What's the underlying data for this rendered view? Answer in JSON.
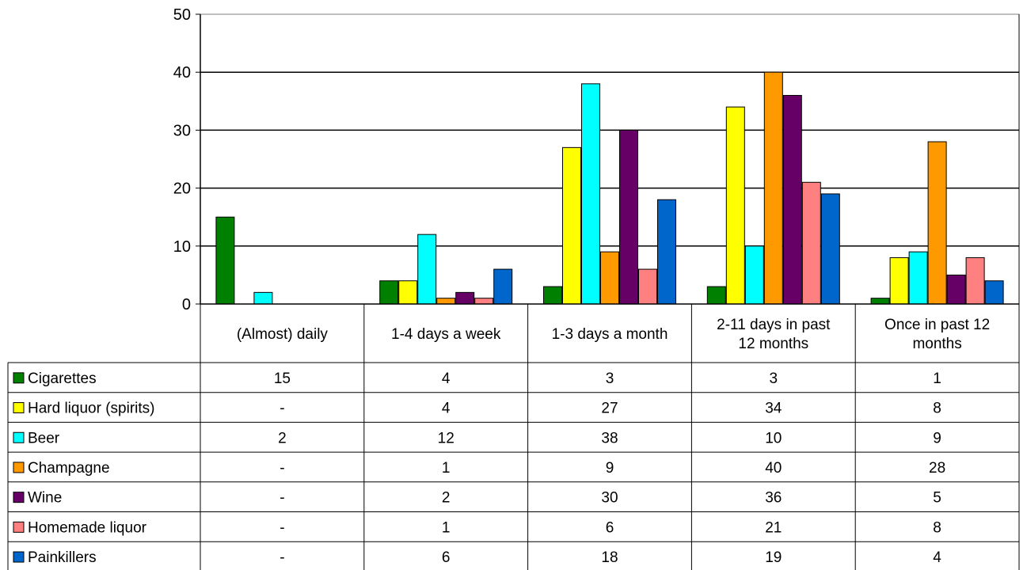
{
  "chart_data": {
    "type": "bar",
    "categories": [
      "(Almost) daily",
      "1-4 days a week",
      "1-3 days a month",
      "2-11 days in past 12 months",
      "Once in past 12 months"
    ],
    "category_lines": [
      [
        "(Almost) daily"
      ],
      [
        "1-4 days a week"
      ],
      [
        "1-3 days a month"
      ],
      [
        "2-11 days in past",
        "12 months"
      ],
      [
        "Once in past 12",
        "months"
      ]
    ],
    "y_ticks": [
      0,
      10,
      20,
      30,
      40,
      50
    ],
    "ylim": [
      0,
      50
    ],
    "grid": true,
    "legend": "data-table",
    "series": [
      {
        "name": "Cigarettes",
        "color": "#008000",
        "values": [
          15,
          4,
          3,
          3,
          1
        ],
        "labels": [
          "15",
          "4",
          "3",
          "3",
          "1"
        ]
      },
      {
        "name": "Hard liquor (spirits)",
        "color": "#ffff00",
        "values": [
          null,
          4,
          27,
          34,
          8
        ],
        "labels": [
          "-",
          "4",
          "27",
          "34",
          "8"
        ]
      },
      {
        "name": "Beer",
        "color": "#00ffff",
        "values": [
          2,
          12,
          38,
          10,
          9
        ],
        "labels": [
          "2",
          "12",
          "38",
          "10",
          "9"
        ]
      },
      {
        "name": "Champagne",
        "color": "#ff9900",
        "values": [
          null,
          1,
          9,
          40,
          28
        ],
        "labels": [
          "-",
          "1",
          "9",
          "40",
          "28"
        ]
      },
      {
        "name": "Wine",
        "color": "#660066",
        "values": [
          null,
          2,
          30,
          36,
          5
        ],
        "labels": [
          "-",
          "2",
          "30",
          "36",
          "5"
        ]
      },
      {
        "name": "Homemade liquor",
        "color": "#ff8080",
        "values": [
          null,
          1,
          6,
          21,
          8
        ],
        "labels": [
          "-",
          "1",
          "6",
          "21",
          "8"
        ]
      },
      {
        "name": "Painkillers",
        "color": "#0066cc",
        "values": [
          null,
          6,
          18,
          19,
          4
        ],
        "labels": [
          "-",
          "6",
          "18",
          "19",
          "4"
        ]
      }
    ]
  }
}
